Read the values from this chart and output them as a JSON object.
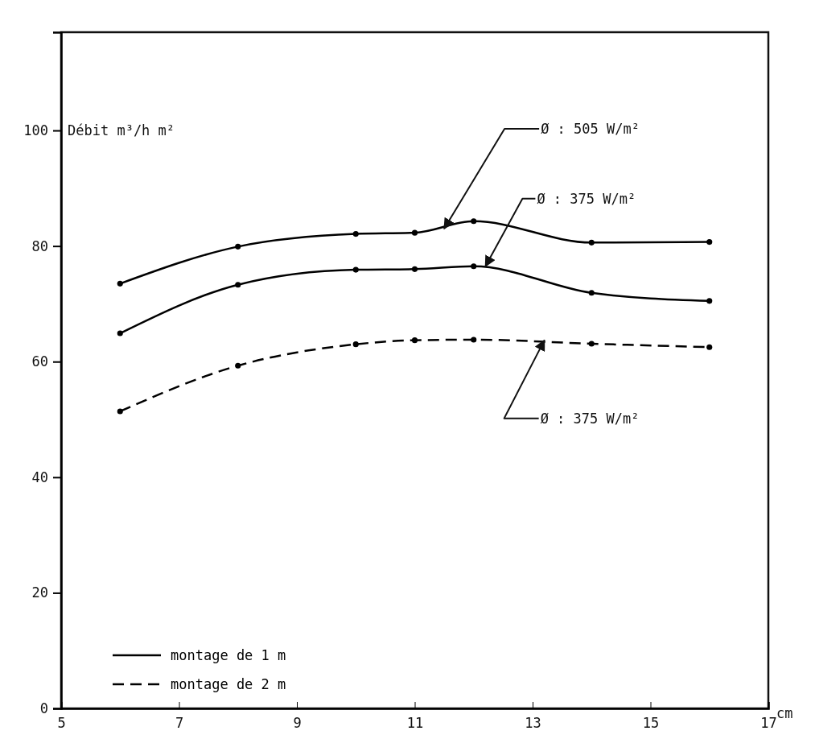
{
  "chart_data": {
    "type": "line",
    "ylabel": "Débit m³/h m²",
    "xlabel": "cm",
    "x": [
      6,
      8,
      10,
      11,
      12,
      14,
      16
    ],
    "series": [
      {
        "name": "montage de 1 m",
        "color": "#000000",
        "line_style": "solid",
        "values": [
          73.5,
          79.9,
          82.1,
          82.3,
          84.3,
          80.6,
          80.7
        ]
      },
      {
        "color": "#000000",
        "line_style": "solid",
        "values": [
          64.9,
          73.3,
          75.9,
          76.0,
          76.5,
          71.9,
          70.5
        ]
      },
      {
        "name": "montage de 2 m",
        "color": "#000000",
        "line_style": "dashed",
        "values": [
          51.4,
          59.3,
          63.0,
          63.7,
          63.8,
          63.1,
          62.5
        ]
      }
    ],
    "xlim": [
      5,
      17
    ],
    "xticks": [
      5,
      7,
      9,
      11,
      13,
      15,
      17
    ],
    "ylim": [
      0,
      117
    ],
    "yticks": [
      0,
      20,
      40,
      60,
      80,
      100
    ],
    "marker": "circle",
    "grid": false,
    "legend": "bottom left",
    "annotations": [
      {
        "text": "Ø : 505 W/m²",
        "x": 11.5,
        "y": 83
      },
      {
        "text": "Ø : 375 W/m²",
        "x": 12.2,
        "y": 76.5
      },
      {
        "text": "Ø : 375 W/m²",
        "x": 13.2,
        "y": 63.7
      }
    ]
  }
}
